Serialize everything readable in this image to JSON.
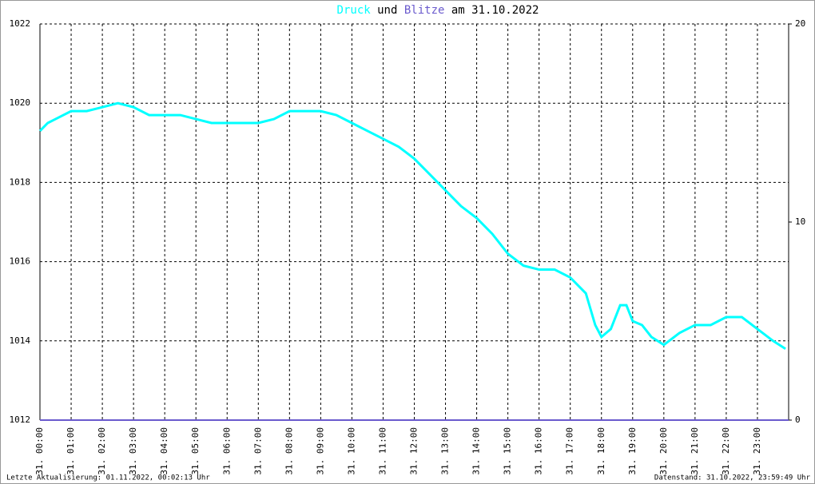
{
  "chart_data": {
    "type": "line",
    "title_connector": "und",
    "title_date": "am 31.10.2022",
    "footer_left": "Letzte Aktualisierung: 01.11.2022, 00:02:13 Uhr",
    "footer_right": "Datenstand: 31.10.2022, 23:59:49 Uhr",
    "series": [
      {
        "name": "Druck",
        "color": "#00ffff",
        "x": [
          0,
          0.25,
          0.5,
          1,
          1.5,
          2,
          2.5,
          3,
          3.5,
          4,
          4.5,
          5,
          5.5,
          6,
          6.5,
          7,
          7.5,
          8,
          8.5,
          9,
          9.5,
          10,
          10.5,
          11,
          11.5,
          12,
          12.5,
          13,
          13.5,
          14,
          14.5,
          15,
          15.5,
          16,
          16.5,
          17,
          17.5,
          17.8,
          18,
          18.3,
          18.6,
          18.8,
          19,
          19.3,
          19.6,
          20,
          20.5,
          21,
          21.5,
          22,
          22.5,
          23,
          23.5,
          23.9
        ],
        "values": [
          1019.3,
          1019.5,
          1019.6,
          1019.8,
          1019.8,
          1019.9,
          1020.0,
          1019.9,
          1019.7,
          1019.7,
          1019.7,
          1019.6,
          1019.5,
          1019.5,
          1019.5,
          1019.5,
          1019.6,
          1019.8,
          1019.8,
          1019.8,
          1019.7,
          1019.5,
          1019.3,
          1019.1,
          1018.9,
          1018.6,
          1018.2,
          1017.8,
          1017.4,
          1017.1,
          1016.7,
          1016.2,
          1015.9,
          1015.8,
          1015.8,
          1015.6,
          1015.2,
          1014.4,
          1014.1,
          1014.3,
          1014.9,
          1014.9,
          1014.5,
          1014.4,
          1014.1,
          1013.9,
          1014.2,
          1014.4,
          1014.4,
          1014.6,
          1014.6,
          1014.3,
          1014.0,
          1013.8
        ]
      },
      {
        "name": "Blitze",
        "color": "#6a5acd",
        "axis": "y2",
        "x": [
          0,
          24
        ],
        "values": [
          0,
          0
        ]
      }
    ],
    "xlim": [
      0,
      24
    ],
    "xticks": [
      {
        "value": 0,
        "label": "31. 00:00"
      },
      {
        "value": 1,
        "label": "31. 01:00"
      },
      {
        "value": 2,
        "label": "31. 02:00"
      },
      {
        "value": 3,
        "label": "31. 03:00"
      },
      {
        "value": 4,
        "label": "31. 04:00"
      },
      {
        "value": 5,
        "label": "31. 05:00"
      },
      {
        "value": 6,
        "label": "31. 06:00"
      },
      {
        "value": 7,
        "label": "31. 07:00"
      },
      {
        "value": 8,
        "label": "31. 08:00"
      },
      {
        "value": 9,
        "label": "31. 09:00"
      },
      {
        "value": 10,
        "label": "31. 10:00"
      },
      {
        "value": 11,
        "label": "31. 11:00"
      },
      {
        "value": 12,
        "label": "31. 12:00"
      },
      {
        "value": 13,
        "label": "31. 13:00"
      },
      {
        "value": 14,
        "label": "31. 14:00"
      },
      {
        "value": 15,
        "label": "31. 15:00"
      },
      {
        "value": 16,
        "label": "31. 16:00"
      },
      {
        "value": 17,
        "label": "31. 17:00"
      },
      {
        "value": 18,
        "label": "31. 18:00"
      },
      {
        "value": 19,
        "label": "31. 19:00"
      },
      {
        "value": 20,
        "label": "31. 20:00"
      },
      {
        "value": 21,
        "label": "31. 21:00"
      },
      {
        "value": 22,
        "label": "31. 22:00"
      },
      {
        "value": 23,
        "label": "31. 23:00"
      }
    ],
    "ylim": [
      1012,
      1022
    ],
    "yticks": [
      1012,
      1014,
      1016,
      1018,
      1020,
      1022
    ],
    "y2lim": [
      0,
      20
    ],
    "y2ticks": [
      0,
      10,
      20
    ],
    "grid": true
  }
}
